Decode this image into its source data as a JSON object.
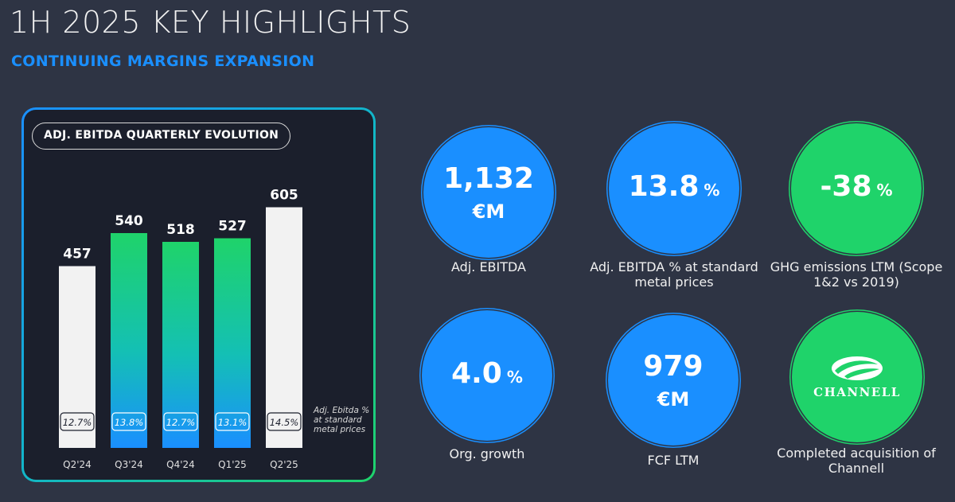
{
  "header": {
    "title": "1H 2025 KEY HIGHLIGHTS",
    "subtitle": "CONTINUING MARGINS EXPANSION"
  },
  "chart_data": {
    "type": "bar",
    "title": "ADJ. EBITDA QUARTERLY EVOLUTION",
    "categories": [
      "Q2'24",
      "Q3'24",
      "Q4'24",
      "Q1'25",
      "Q2'25"
    ],
    "values": [
      457,
      540,
      518,
      527,
      605
    ],
    "pct_labels": [
      "12.7%",
      "13.8%",
      "12.7%",
      "13.1%",
      "14.5%"
    ],
    "bar_styles": [
      "white",
      "gradient",
      "gradient",
      "gradient",
      "white"
    ],
    "note": "Adj. Ebitda % at standard metal prices",
    "xlabel": "",
    "ylabel": ""
  },
  "kpis": [
    {
      "value": "1,132",
      "unit": "€M",
      "label": "Adj. EBITDA",
      "color": "#1a8fff"
    },
    {
      "value": "13.8",
      "unit": "%",
      "label": "Adj. EBITDA % at standard metal prices",
      "color": "#1a8fff"
    },
    {
      "value": "-38",
      "unit": "%",
      "label": "GHG emissions LTM (Scope 1&2 vs 2019)",
      "color": "#1fd36a"
    },
    {
      "value": "4.0",
      "unit": "%",
      "label": "Org. growth",
      "color": "#1a8fff"
    },
    {
      "value": "979",
      "unit": "€M",
      "label": "FCF LTM",
      "color": "#1a8fff"
    },
    {
      "logo_text": "CHANNELL",
      "label": "Completed acquisition of Channell",
      "color": "#1fd36a"
    }
  ],
  "colors": {
    "background": "#2e3444",
    "blue": "#1a8fff",
    "green": "#1fd36a",
    "bar_white": "#f2f2f2"
  }
}
